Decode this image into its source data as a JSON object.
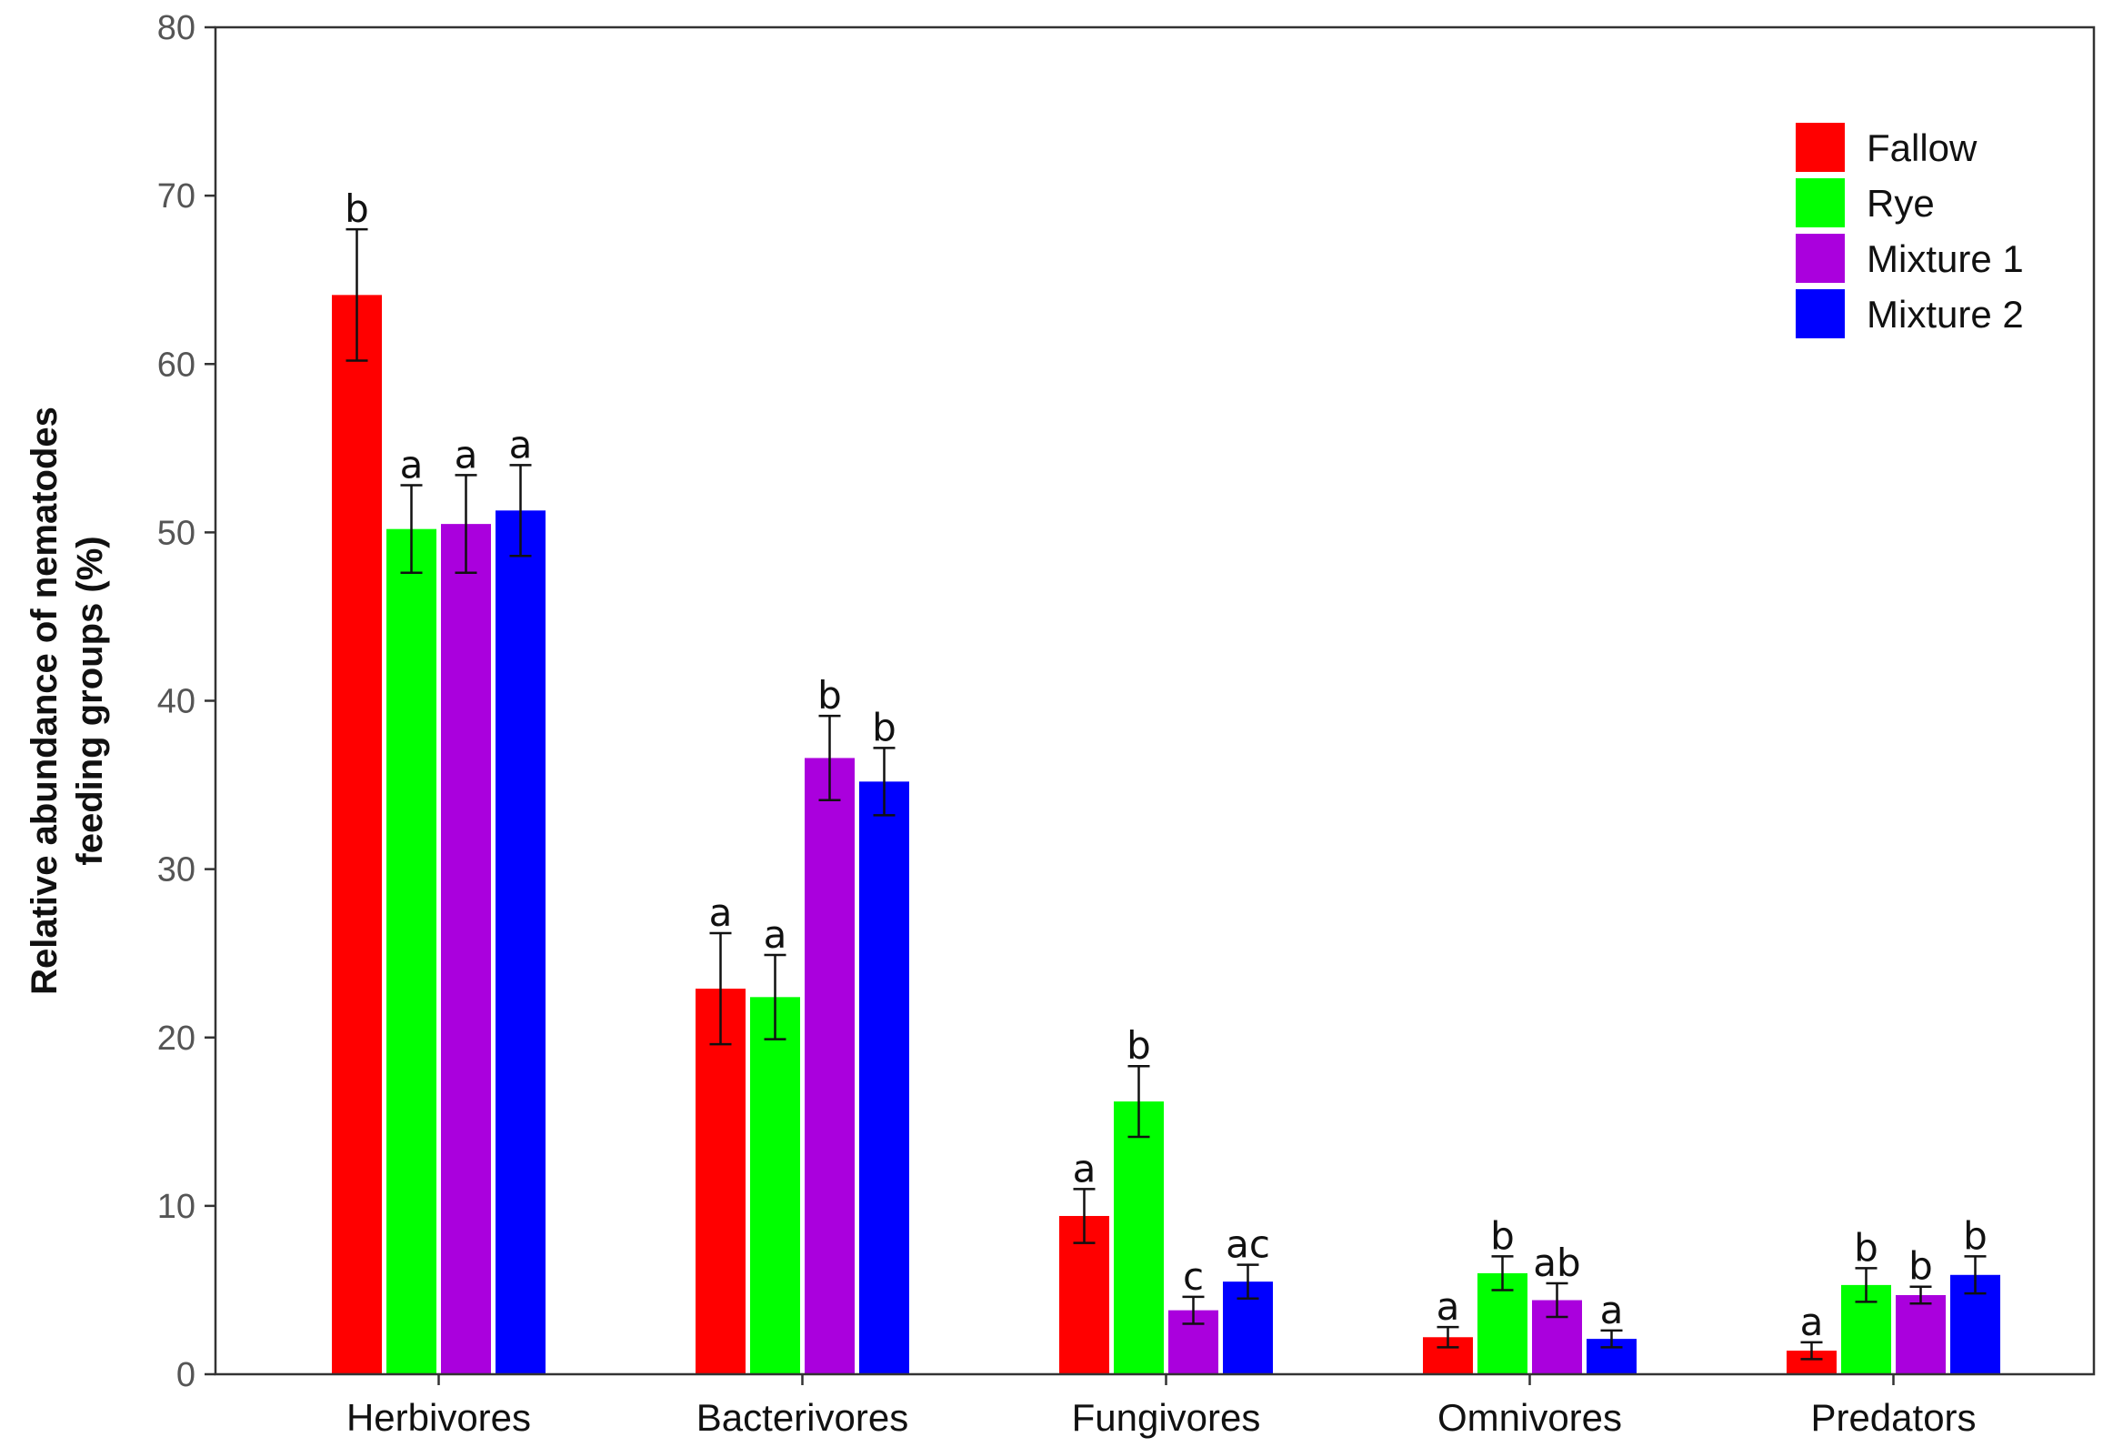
{
  "chart_data": {
    "type": "bar",
    "title": "",
    "xlabel": "",
    "ylabel_lines": [
      "Relative abundance of nematodes",
      "feeding groups (%)"
    ],
    "ylim": [
      0,
      80
    ],
    "yticks": [
      0,
      10,
      20,
      30,
      40,
      50,
      60,
      70,
      80
    ],
    "categories": [
      "Herbivores",
      "Bacterivores",
      "Fungivores",
      "Omnivores",
      "Predators"
    ],
    "legend_position": "top-right",
    "grid": false,
    "series": [
      {
        "name": "Fallow",
        "color": "#ff0000",
        "values": [
          64.1,
          22.9,
          9.4,
          2.2,
          1.4
        ],
        "errors": [
          3.9,
          3.3,
          1.6,
          0.6,
          0.5
        ],
        "letters": [
          "b",
          "a",
          "a",
          "a",
          "a"
        ]
      },
      {
        "name": "Rye",
        "color": "#00ff00",
        "values": [
          50.2,
          22.4,
          16.2,
          6.0,
          5.3
        ],
        "errors": [
          2.6,
          2.5,
          2.1,
          1.0,
          1.0
        ],
        "letters": [
          "a",
          "a",
          "b",
          "b",
          "b"
        ]
      },
      {
        "name": "Mixture 1",
        "color": "#aa00dd",
        "values": [
          50.5,
          36.6,
          3.8,
          4.4,
          4.7
        ],
        "errors": [
          2.9,
          2.5,
          0.8,
          1.0,
          0.5
        ],
        "letters": [
          "a",
          "b",
          "c",
          "ab",
          "b"
        ]
      },
      {
        "name": "Mixture 2",
        "color": "#0000ff",
        "values": [
          51.3,
          35.2,
          5.5,
          2.1,
          5.9
        ],
        "errors": [
          2.7,
          2.0,
          1.0,
          0.5,
          1.1
        ],
        "letters": [
          "a",
          "b",
          "ac",
          "a",
          "b"
        ]
      }
    ]
  }
}
